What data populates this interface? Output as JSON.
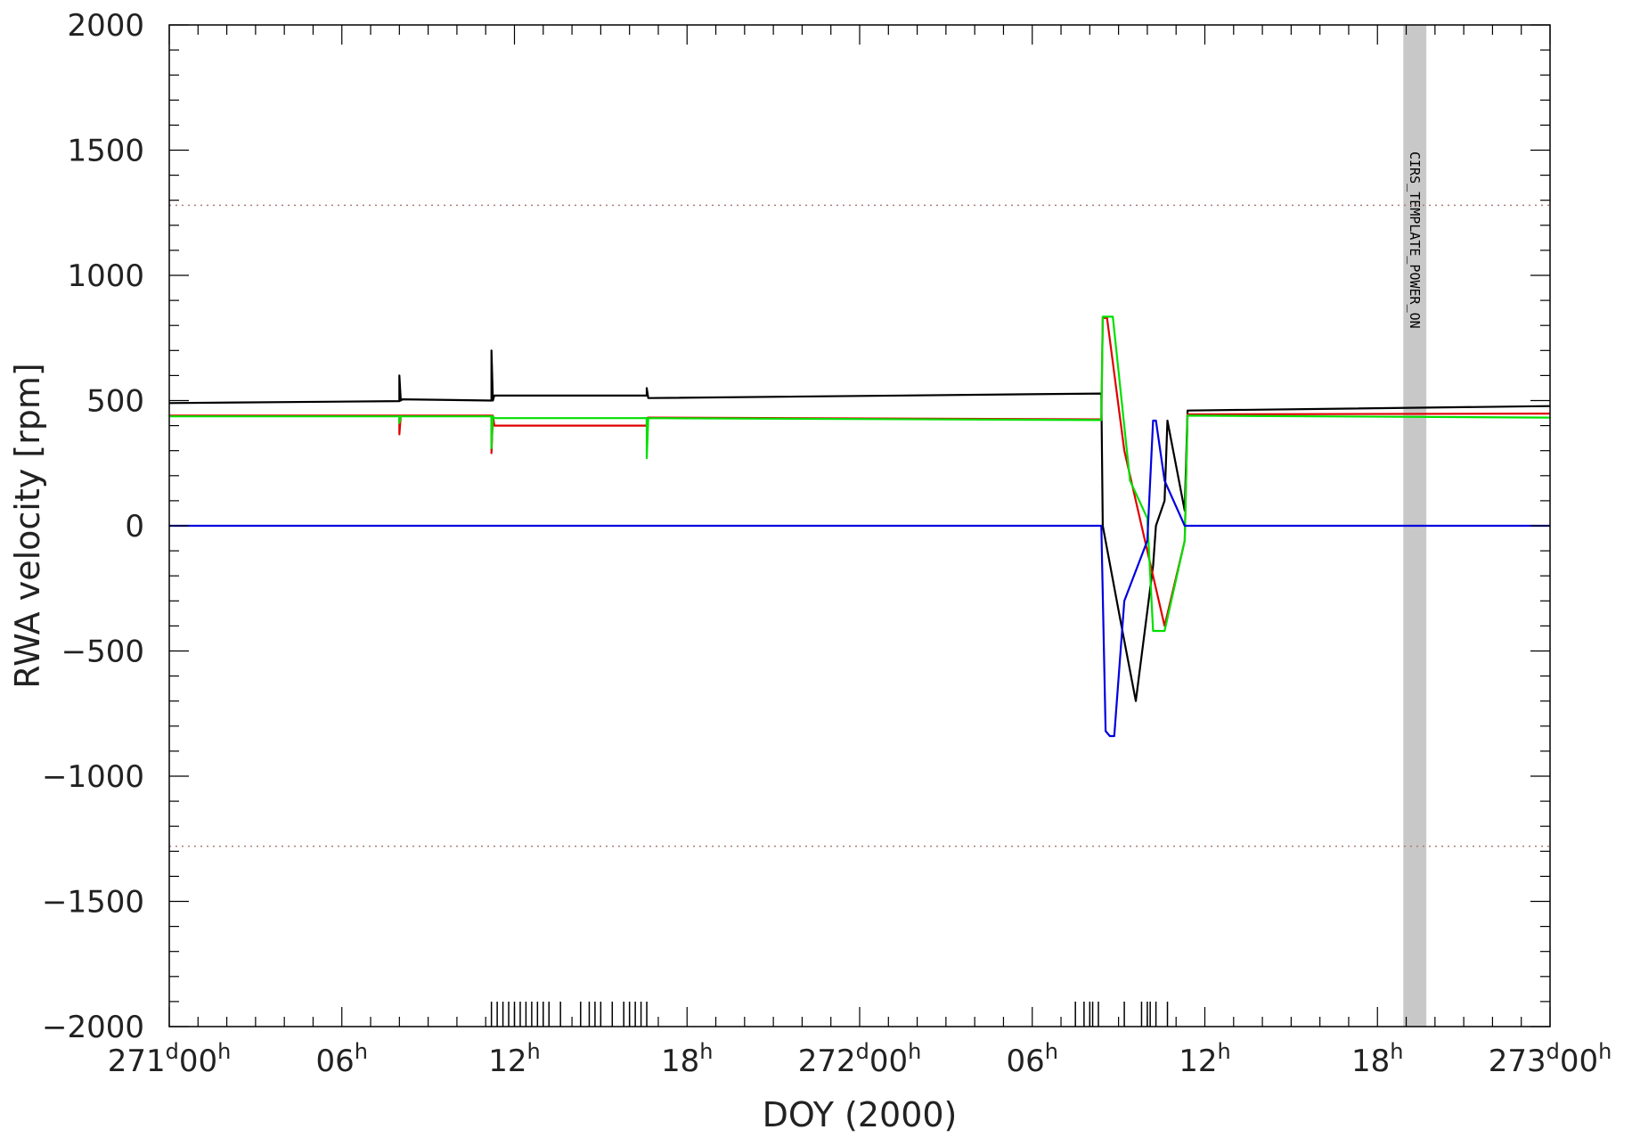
{
  "chart_data": {
    "type": "line",
    "title": "",
    "xlabel": "DOY (2000)",
    "ylabel": "RWA velocity [rpm]",
    "xlim": [
      0,
      48
    ],
    "ylim": [
      -2000,
      2000
    ],
    "x_unit": "hours since DOY 271 00h",
    "y_ticks": [
      -2000,
      -1500,
      -1000,
      -500,
      0,
      500,
      1000,
      1500,
      2000
    ],
    "y_tick_labels": [
      "−2000",
      "−1500",
      "−1000",
      "−500",
      "0",
      "500",
      "1000",
      "1500",
      "2000"
    ],
    "x_ticks": [
      {
        "x": 0,
        "main": "271",
        "sup1": "d",
        "mid": "00",
        "sup2": "h"
      },
      {
        "x": 6,
        "main": "",
        "sup1": "",
        "mid": "06",
        "sup2": "h"
      },
      {
        "x": 12,
        "main": "",
        "sup1": "",
        "mid": "12",
        "sup2": "h"
      },
      {
        "x": 18,
        "main": "",
        "sup1": "",
        "mid": "18",
        "sup2": "h"
      },
      {
        "x": 24,
        "main": "272",
        "sup1": "d",
        "mid": "00",
        "sup2": "h"
      },
      {
        "x": 30,
        "main": "",
        "sup1": "",
        "mid": "06",
        "sup2": "h"
      },
      {
        "x": 36,
        "main": "",
        "sup1": "",
        "mid": "12",
        "sup2": "h"
      },
      {
        "x": 42,
        "main": "",
        "sup1": "",
        "mid": "18",
        "sup2": "h"
      },
      {
        "x": 48,
        "main": "273",
        "sup1": "d",
        "mid": "00",
        "sup2": "h"
      }
    ],
    "limit_lines": [
      1280,
      -1280
    ],
    "limit_line_color": "#b07a7a",
    "shaded_band": {
      "x_start": 42.9,
      "x_end": 43.7,
      "color": "#c8c8c8",
      "label": "CIRS_TEMPLATE_POWER_ON"
    },
    "series": [
      {
        "color": "#000000",
        "x": [
          0,
          8.0,
          8.0,
          8.05,
          8.1,
          11.2,
          11.2,
          11.25,
          11.3,
          16.6,
          16.6,
          16.65,
          32.4,
          32.45,
          33.1,
          33.6,
          34.2,
          34.3,
          34.6,
          34.7,
          35.3,
          35.4,
          48
        ],
        "y": [
          490,
          498,
          600,
          500,
          505,
          500,
          700,
          500,
          520,
          520,
          550,
          510,
          528,
          0,
          -400,
          -700,
          -160,
          0,
          100,
          420,
          60,
          460,
          478
        ]
      },
      {
        "color": "#e00000",
        "x": [
          0,
          8.0,
          8.0,
          8.05,
          11.2,
          11.2,
          11.25,
          11.3,
          16.6,
          16.6,
          16.65,
          32.4,
          32.45,
          32.6,
          33.2,
          34.0,
          34.6,
          35.3,
          35.4,
          48
        ],
        "y": [
          440,
          440,
          365,
          440,
          440,
          290,
          440,
          400,
          400,
          430,
          432,
          425,
          830,
          830,
          300,
          -100,
          -400,
          -60,
          445,
          448
        ]
      },
      {
        "color": "#00e000",
        "x": [
          0,
          8.0,
          8.0,
          8.05,
          11.2,
          11.2,
          11.25,
          11.3,
          16.6,
          16.6,
          16.65,
          32.4,
          32.45,
          32.8,
          33.4,
          34.0,
          34.2,
          34.6,
          35.3,
          35.4,
          48
        ],
        "y": [
          437,
          437,
          410,
          437,
          437,
          310,
          437,
          430,
          430,
          270,
          430,
          422,
          835,
          835,
          180,
          30,
          -420,
          -420,
          -60,
          440,
          432
        ]
      },
      {
        "color": "#0000e0",
        "x": [
          0,
          32.4,
          32.55,
          32.7,
          32.85,
          33.2,
          34.0,
          34.2,
          34.3,
          34.6,
          35.3,
          35.4,
          48
        ],
        "y": [
          0,
          0,
          -820,
          -840,
          -840,
          -300,
          -60,
          420,
          420,
          180,
          0,
          0,
          0
        ]
      }
    ],
    "event_ticks_x": [
      11.2,
      11.4,
      11.6,
      11.8,
      12.0,
      12.2,
      12.4,
      12.6,
      12.8,
      13.0,
      13.2,
      13.6,
      14.3,
      14.6,
      14.8,
      15.0,
      15.4,
      15.8,
      16.0,
      16.2,
      16.4,
      16.6,
      31.5,
      31.8,
      32.0,
      32.1,
      32.3,
      33.2,
      33.8,
      34.0,
      34.1,
      34.3,
      34.7
    ]
  }
}
